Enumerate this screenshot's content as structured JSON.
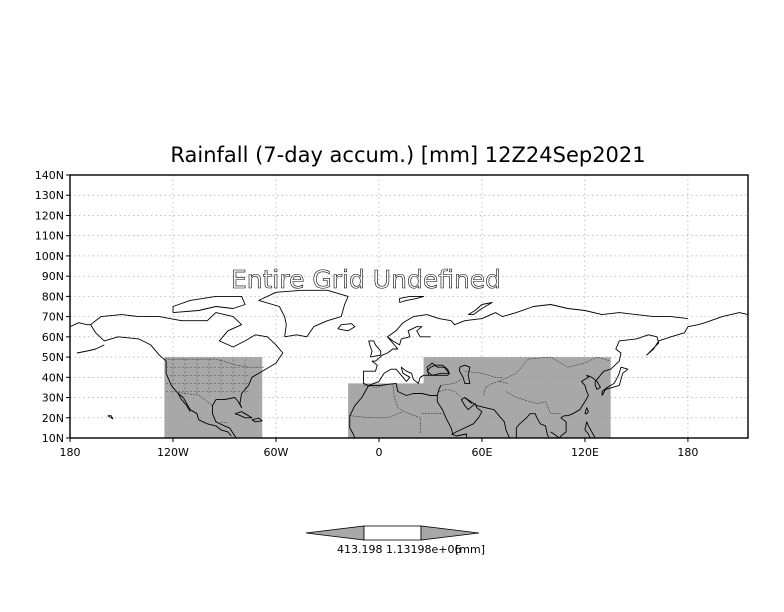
{
  "chart_data": {
    "type": "map",
    "title": "Rainfall (7-day accum.) [mm] 12Z24Sep2021",
    "annotation": "Entire Grid Undefined",
    "projection": "latlon",
    "lon_range": [
      -180,
      215
    ],
    "lat_range": [
      10,
      140
    ],
    "grid": true,
    "lat_ticks": [
      {
        "value": 140,
        "label": "140N"
      },
      {
        "value": 130,
        "label": "130N"
      },
      {
        "value": 120,
        "label": "120N"
      },
      {
        "value": 110,
        "label": "110N"
      },
      {
        "value": 100,
        "label": "100N"
      },
      {
        "value": 90,
        "label": "90N"
      },
      {
        "value": 80,
        "label": "80N"
      },
      {
        "value": 70,
        "label": "70N"
      },
      {
        "value": 60,
        "label": "60N"
      },
      {
        "value": 50,
        "label": "50N"
      },
      {
        "value": 40,
        "label": "40N"
      },
      {
        "value": 30,
        "label": "30N"
      },
      {
        "value": 20,
        "label": "20N"
      },
      {
        "value": 10,
        "label": "10N"
      }
    ],
    "lon_ticks": [
      {
        "value": -180,
        "label": "180"
      },
      {
        "value": -120,
        "label": "120W"
      },
      {
        "value": -60,
        "label": "60W"
      },
      {
        "value": 0,
        "label": "0"
      },
      {
        "value": 60,
        "label": "60E"
      },
      {
        "value": 120,
        "label": "120E"
      },
      {
        "value": 180,
        "label": "180"
      }
    ],
    "shaded_regions": [
      {
        "name": "North America",
        "lon_range": [
          -125,
          -68
        ],
        "lat_range": [
          10,
          50
        ]
      },
      {
        "name": "Africa",
        "lon_range": [
          -18,
          51
        ],
        "lat_range": [
          10,
          37
        ]
      },
      {
        "name": "Asia",
        "lon_range": [
          26,
          135
        ],
        "lat_range": [
          10,
          50
        ]
      }
    ],
    "colorbar": {
      "labels": [
        "413.198",
        "1.13198e+06",
        "[mm]"
      ],
      "segments": [
        "#a8a8a8",
        "#ffffff",
        "#a8a8a8"
      ]
    },
    "colors": {
      "shade": "#a8a8a8",
      "grid": "#9a9a9a",
      "coast": "#000000"
    }
  }
}
